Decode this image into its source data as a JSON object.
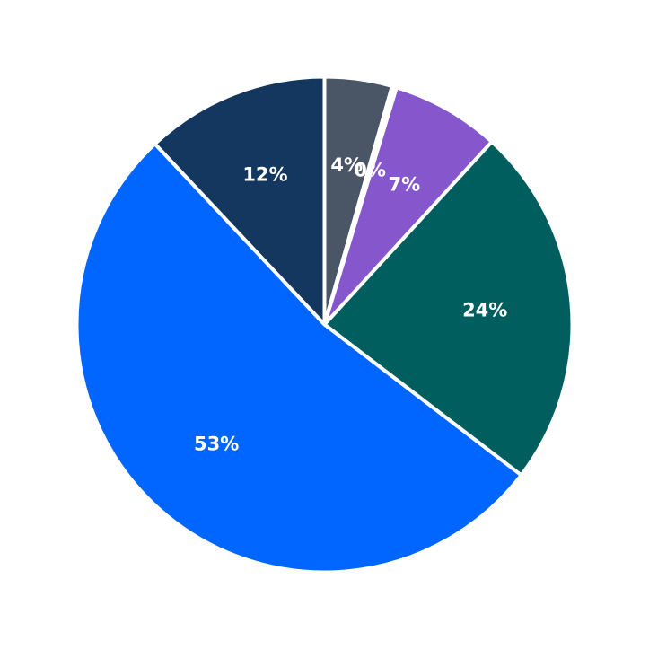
{
  "chart_data": {
    "type": "pie",
    "start_angle_deg": 90,
    "direction": "clockwise",
    "slices": [
      {
        "label": "4%",
        "value": 4.4,
        "color": "#4a5566"
      },
      {
        "label": "0%",
        "value": 0.3,
        "color": "#ffffff"
      },
      {
        "label": "7%",
        "value": 7.1,
        "color": "#8556cc"
      },
      {
        "label": "24%",
        "value": 23.6,
        "color": "#005f5e"
      },
      {
        "label": "53%",
        "value": 52.6,
        "color": "#0066ff"
      },
      {
        "label": "12%",
        "value": 12.0,
        "color": "#14375f"
      }
    ],
    "edge_color": "#ffffff"
  }
}
